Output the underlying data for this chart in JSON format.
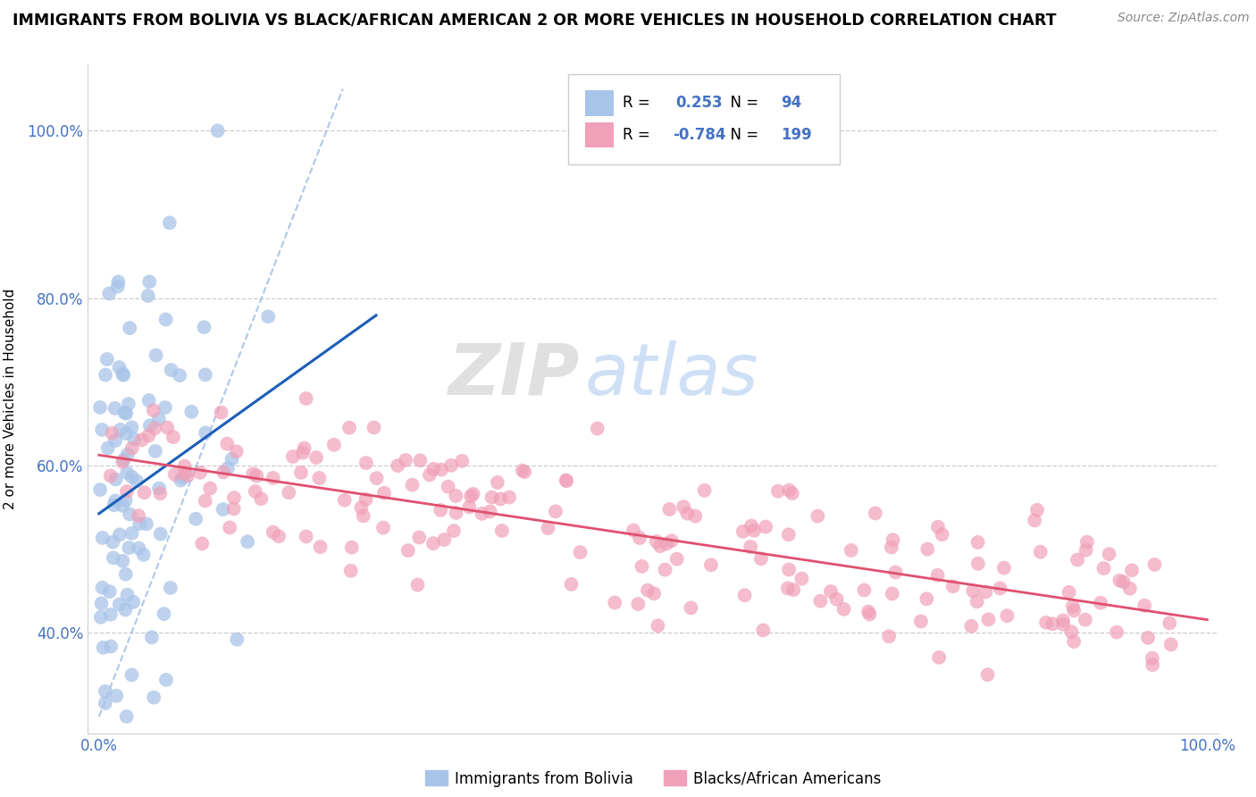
{
  "title": "IMMIGRANTS FROM BOLIVIA VS BLACK/AFRICAN AMERICAN 2 OR MORE VEHICLES IN HOUSEHOLD CORRELATION CHART",
  "source": "Source: ZipAtlas.com",
  "ylabel": "2 or more Vehicles in Household",
  "blue_R": 0.253,
  "blue_N": 94,
  "pink_R": -0.784,
  "pink_N": 199,
  "blue_color": "#a8c4e8",
  "pink_color": "#f0a0b8",
  "blue_line_color": "#1a5eb8",
  "pink_line_color": "#e05070",
  "dash_color": "#8ab0e0",
  "watermark_zip_color": "#c8c8c8",
  "watermark_atlas_color": "#a8c8f0",
  "legend_blue_label": "Immigrants from Bolivia",
  "legend_pink_label": "Blacks/African Americans",
  "tick_color": "#4472c4",
  "xlim": [
    -0.01,
    1.01
  ],
  "ylim": [
    0.28,
    1.08
  ],
  "ytick_vals": [
    0.4,
    0.6,
    0.8,
    1.0
  ],
  "ytick_labels": [
    "40.0%",
    "60.0%",
    "80.0%",
    "100.0%"
  ]
}
